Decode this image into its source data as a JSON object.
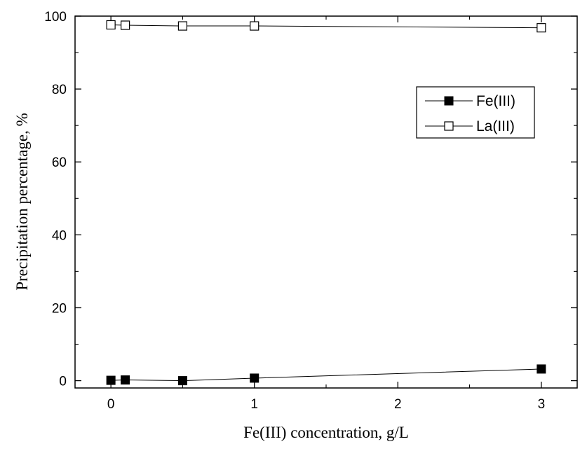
{
  "chart_data": {
    "type": "line",
    "xlabel": "Fe(III) concentration, g/L",
    "ylabel": "Precipitation percentage, %",
    "xlim": [
      -0.25,
      3.25
    ],
    "ylim": [
      -2,
      100
    ],
    "xticks": [
      0,
      1,
      2,
      3
    ],
    "xtick_labels": [
      "0",
      "1",
      "2",
      "3"
    ],
    "yticks": [
      0,
      20,
      40,
      60,
      80,
      100
    ],
    "ytick_labels": [
      "0",
      "20",
      "40",
      "60",
      "80",
      "100"
    ],
    "legend_position": "upper-right",
    "series": [
      {
        "name": "Fe(III)",
        "marker": "filled-square",
        "color": "#000000",
        "x": [
          0,
          0.1,
          0.5,
          1,
          3
        ],
        "y": [
          0.1,
          0.2,
          0.0,
          0.7,
          3.2
        ]
      },
      {
        "name": "La(III)",
        "marker": "open-square",
        "color": "#000000",
        "x": [
          0,
          0.1,
          0.5,
          1,
          3
        ],
        "y": [
          97.6,
          97.5,
          97.3,
          97.3,
          96.8
        ]
      }
    ]
  }
}
